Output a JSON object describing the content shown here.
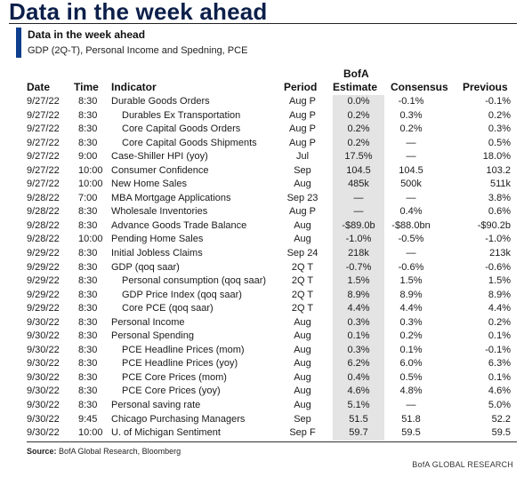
{
  "headline": "Data in the week ahead",
  "subtitle": "Data in the week ahead",
  "description": "GDP (2Q-T), Personal Income and Spedning, PCE",
  "headers": {
    "date": "Date",
    "time": "Time",
    "indicator": "Indicator",
    "period": "Period",
    "estimate_line1": "BofA",
    "estimate_line2": "Estimate",
    "consensus": "Consensus",
    "previous": "Previous"
  },
  "rows": [
    {
      "date": "9/27/22",
      "time": "8:30",
      "indicator": "Durable Goods Orders",
      "indent": false,
      "period": "Aug P",
      "estimate": "0.0%",
      "consensus": "-0.1%",
      "previous": "-0.1%"
    },
    {
      "date": "9/27/22",
      "time": "8:30",
      "indicator": "Durables Ex Transportation",
      "indent": true,
      "period": "Aug P",
      "estimate": "0.2%",
      "consensus": "0.3%",
      "previous": "0.2%"
    },
    {
      "date": "9/27/22",
      "time": "8:30",
      "indicator": "Core Capital Goods Orders",
      "indent": true,
      "period": "Aug P",
      "estimate": "0.2%",
      "consensus": "0.2%",
      "previous": "0.3%"
    },
    {
      "date": "9/27/22",
      "time": "8:30",
      "indicator": "Core Capital Goods Shipments",
      "indent": true,
      "period": "Aug P",
      "estimate": "0.2%",
      "consensus": "—",
      "previous": "0.5%"
    },
    {
      "date": "9/27/22",
      "time": "9:00",
      "indicator": "Case-Shiller HPI (yoy)",
      "indent": false,
      "period": "Jul",
      "estimate": "17.5%",
      "consensus": "—",
      "previous": "18.0%"
    },
    {
      "date": "9/27/22",
      "time": "10:00",
      "indicator": "Consumer Confidence",
      "indent": false,
      "period": "Sep",
      "estimate": "104.5",
      "consensus": "104.5",
      "previous": "103.2"
    },
    {
      "date": "9/27/22",
      "time": "10:00",
      "indicator": "New Home Sales",
      "indent": false,
      "period": "Aug",
      "estimate": "485k",
      "consensus": "500k",
      "previous": "511k"
    },
    {
      "date": "9/28/22",
      "time": "7:00",
      "indicator": "MBA Mortgage Applications",
      "indent": false,
      "period": "Sep 23",
      "estimate": "—",
      "consensus": "—",
      "previous": "3.8%"
    },
    {
      "date": "9/28/22",
      "time": "8:30",
      "indicator": "Wholesale Inventories",
      "indent": false,
      "period": "Aug P",
      "estimate": "—",
      "consensus": "0.4%",
      "previous": "0.6%"
    },
    {
      "date": "9/28/22",
      "time": "8:30",
      "indicator": "Advance Goods Trade Balance",
      "indent": false,
      "period": "Aug",
      "estimate": "-$89.0b",
      "consensus": "-$88.0bn",
      "previous": "-$90.2b"
    },
    {
      "date": "9/28/22",
      "time": "10:00",
      "indicator": "Pending Home Sales",
      "indent": false,
      "period": "Aug",
      "estimate": "-1.0%",
      "consensus": "-0.5%",
      "previous": "-1.0%"
    },
    {
      "date": "9/29/22",
      "time": "8:30",
      "indicator": "Initial Jobless Claims",
      "indent": false,
      "period": "Sep 24",
      "estimate": "218k",
      "consensus": "—",
      "previous": "213k"
    },
    {
      "date": "9/29/22",
      "time": "8:30",
      "indicator": "GDP (qoq saar)",
      "indent": false,
      "period": "2Q T",
      "estimate": "-0.7%",
      "consensus": "-0.6%",
      "previous": "-0.6%"
    },
    {
      "date": "9/29/22",
      "time": "8:30",
      "indicator": "Personal consumption (qoq saar)",
      "indent": true,
      "period": "2Q T",
      "estimate": "1.5%",
      "consensus": "1.5%",
      "previous": "1.5%"
    },
    {
      "date": "9/29/22",
      "time": "8:30",
      "indicator": "GDP Price Index (qoq saar)",
      "indent": true,
      "period": "2Q T",
      "estimate": "8.9%",
      "consensus": "8.9%",
      "previous": "8.9%"
    },
    {
      "date": "9/29/22",
      "time": "8:30",
      "indicator": "Core PCE (qoq saar)",
      "indent": true,
      "period": "2Q T",
      "estimate": "4.4%",
      "consensus": "4.4%",
      "previous": "4.4%"
    },
    {
      "date": "9/30/22",
      "time": "8:30",
      "indicator": "Personal Income",
      "indent": false,
      "period": "Aug",
      "estimate": "0.3%",
      "consensus": "0.3%",
      "previous": "0.2%"
    },
    {
      "date": "9/30/22",
      "time": "8:30",
      "indicator": "Personal Spending",
      "indent": false,
      "period": "Aug",
      "estimate": "0.1%",
      "consensus": "0.2%",
      "previous": "0.1%"
    },
    {
      "date": "9/30/22",
      "time": "8:30",
      "indicator": "PCE Headline Prices (mom)",
      "indent": true,
      "period": "Aug",
      "estimate": "0.3%",
      "consensus": "0.1%",
      "previous": "-0.1%"
    },
    {
      "date": "9/30/22",
      "time": "8:30",
      "indicator": "PCE Headline Prices (yoy)",
      "indent": true,
      "period": "Aug",
      "estimate": "6.2%",
      "consensus": "6.0%",
      "previous": "6.3%"
    },
    {
      "date": "9/30/22",
      "time": "8:30",
      "indicator": "PCE Core Prices (mom)",
      "indent": true,
      "period": "Aug",
      "estimate": "0.4%",
      "consensus": "0.5%",
      "previous": "0.1%"
    },
    {
      "date": "9/30/22",
      "time": "8:30",
      "indicator": "PCE Core Prices (yoy)",
      "indent": true,
      "period": "Aug",
      "estimate": "4.6%",
      "consensus": "4.8%",
      "previous": "4.6%"
    },
    {
      "date": "9/30/22",
      "time": "8:30",
      "indicator": "Personal saving rate",
      "indent": false,
      "period": "Aug",
      "estimate": "5.1%",
      "consensus": "—",
      "previous": "5.0%"
    },
    {
      "date": "9/30/22",
      "time": "9:45",
      "indicator": "Chicago Purchasing Managers",
      "indent": false,
      "period": "Sep",
      "estimate": "51.5",
      "consensus": "51.8",
      "previous": "52.2"
    },
    {
      "date": "9/30/22",
      "time": "10:00",
      "indicator": "U. of Michigan Sentiment",
      "indent": false,
      "period": "Sep F",
      "estimate": "59.7",
      "consensus": "59.5",
      "previous": "59.5"
    }
  ],
  "source": {
    "label": "Source:",
    "text": "BofA Global Research, Bloomberg"
  },
  "brand": "BofA GLOBAL RESEARCH",
  "colors": {
    "headline": "#0c1f4a",
    "accent": "#0d3f8c",
    "estimate_shade": "#e4e4e4"
  }
}
